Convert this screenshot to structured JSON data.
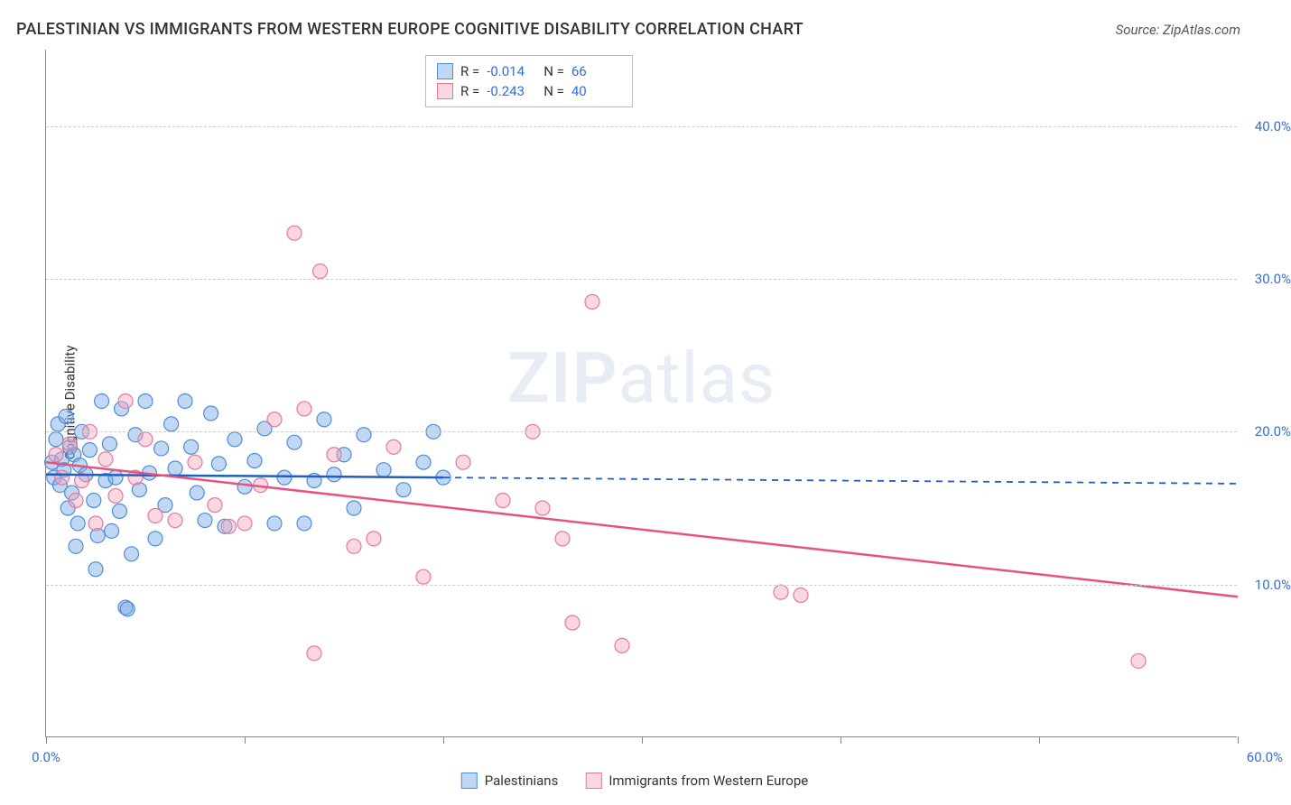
{
  "title": "PALESTINIAN VS IMMIGRANTS FROM WESTERN EUROPE COGNITIVE DISABILITY CORRELATION CHART",
  "source_label": "Source: ZipAtlas.com",
  "yaxis_label": "Cognitive Disability",
  "watermark": {
    "zip": "ZIP",
    "atlas": "atlas"
  },
  "chart": {
    "type": "scatter",
    "background_color": "#ffffff",
    "grid_color": "#cccccc",
    "xlim": [
      0,
      60
    ],
    "ylim": [
      0,
      45
    ],
    "xtick_positions": [
      0,
      10,
      20,
      30,
      40,
      50,
      60
    ],
    "xtick_labels_shown": {
      "0": "0.0%",
      "60": "60.0%"
    },
    "ytick_positions": [
      10,
      20,
      30,
      40
    ],
    "ytick_labels": [
      "10.0%",
      "20.0%",
      "30.0%",
      "40.0%"
    ],
    "ytick_color": "#356fd6",
    "xtick_color": "#356fd6",
    "marker_radius": 8,
    "marker_stroke_width": 1.2,
    "series": [
      {
        "name": "Palestinians",
        "fill": "rgba(117,169,230,0.45)",
        "stroke": "#4f8dd6",
        "r": -0.014,
        "n": 66,
        "regression": {
          "x1": 0,
          "y1": 17.2,
          "x2_solid": 20,
          "y2_solid": 17.0,
          "x2_dash": 60,
          "y2_dash": 16.6,
          "color": "#1f5fc4",
          "width": 2.5
        },
        "points": [
          [
            0.3,
            18.0
          ],
          [
            0.4,
            17.0
          ],
          [
            0.5,
            19.5
          ],
          [
            0.6,
            20.5
          ],
          [
            0.7,
            16.5
          ],
          [
            0.8,
            18.2
          ],
          [
            0.9,
            17.5
          ],
          [
            1.0,
            21.0
          ],
          [
            1.1,
            15.0
          ],
          [
            1.2,
            19.0
          ],
          [
            1.3,
            16.0
          ],
          [
            1.4,
            18.5
          ],
          [
            1.5,
            12.5
          ],
          [
            1.6,
            14.0
          ],
          [
            1.7,
            17.8
          ],
          [
            1.8,
            20.0
          ],
          [
            2.0,
            17.2
          ],
          [
            2.2,
            18.8
          ],
          [
            2.4,
            15.5
          ],
          [
            2.5,
            11.0
          ],
          [
            2.6,
            13.2
          ],
          [
            2.8,
            22.0
          ],
          [
            3.0,
            16.8
          ],
          [
            3.2,
            19.2
          ],
          [
            3.3,
            13.5
          ],
          [
            3.5,
            17.0
          ],
          [
            3.7,
            14.8
          ],
          [
            3.8,
            21.5
          ],
          [
            4.0,
            8.5
          ],
          [
            4.1,
            8.4
          ],
          [
            4.3,
            12.0
          ],
          [
            4.5,
            19.8
          ],
          [
            4.7,
            16.2
          ],
          [
            5.0,
            22.0
          ],
          [
            5.2,
            17.3
          ],
          [
            5.5,
            13.0
          ],
          [
            5.8,
            18.9
          ],
          [
            6.0,
            15.2
          ],
          [
            6.3,
            20.5
          ],
          [
            6.5,
            17.6
          ],
          [
            7.0,
            22.0
          ],
          [
            7.3,
            19.0
          ],
          [
            7.6,
            16.0
          ],
          [
            8.0,
            14.2
          ],
          [
            8.3,
            21.2
          ],
          [
            8.7,
            17.9
          ],
          [
            9.0,
            13.8
          ],
          [
            9.5,
            19.5
          ],
          [
            10.0,
            16.4
          ],
          [
            10.5,
            18.1
          ],
          [
            11.0,
            20.2
          ],
          [
            11.5,
            14.0
          ],
          [
            12.0,
            17.0
          ],
          [
            12.5,
            19.3
          ],
          [
            13.0,
            14.0
          ],
          [
            13.5,
            16.8
          ],
          [
            14.0,
            20.8
          ],
          [
            14.5,
            17.2
          ],
          [
            15.0,
            18.5
          ],
          [
            15.5,
            15.0
          ],
          [
            16.0,
            19.8
          ],
          [
            17.0,
            17.5
          ],
          [
            18.0,
            16.2
          ],
          [
            19.0,
            18.0
          ],
          [
            19.5,
            20.0
          ],
          [
            20.0,
            17.0
          ]
        ]
      },
      {
        "name": "Immigrants from Western Europe",
        "fill": "rgba(244,166,188,0.45)",
        "stroke": "#e6789d",
        "r": -0.243,
        "n": 40,
        "regression": {
          "x1": 0,
          "y1": 18.0,
          "x2_solid": 60,
          "y2_solid": 9.2,
          "color": "#e6537f",
          "width": 2.5
        },
        "points": [
          [
            0.5,
            18.5
          ],
          [
            0.8,
            17.0
          ],
          [
            1.2,
            19.2
          ],
          [
            1.5,
            15.5
          ],
          [
            1.8,
            16.8
          ],
          [
            2.2,
            20.0
          ],
          [
            2.5,
            14.0
          ],
          [
            3.0,
            18.2
          ],
          [
            3.5,
            15.8
          ],
          [
            4.0,
            22.0
          ],
          [
            4.5,
            17.0
          ],
          [
            5.0,
            19.5
          ],
          [
            5.5,
            14.5
          ],
          [
            6.5,
            14.2
          ],
          [
            7.5,
            18.0
          ],
          [
            8.5,
            15.2
          ],
          [
            9.2,
            13.8
          ],
          [
            10.0,
            14.0
          ],
          [
            10.8,
            16.5
          ],
          [
            11.5,
            20.8
          ],
          [
            12.5,
            33.0
          ],
          [
            13.0,
            21.5
          ],
          [
            13.8,
            30.5
          ],
          [
            14.5,
            18.5
          ],
          [
            15.5,
            12.5
          ],
          [
            16.5,
            13.0
          ],
          [
            17.5,
            19.0
          ],
          [
            19.0,
            10.5
          ],
          [
            21.0,
            18.0
          ],
          [
            23.0,
            15.5
          ],
          [
            24.5,
            20.0
          ],
          [
            25.0,
            15.0
          ],
          [
            26.0,
            13.0
          ],
          [
            26.5,
            7.5
          ],
          [
            27.5,
            28.5
          ],
          [
            29.0,
            6.0
          ],
          [
            37.0,
            9.5
          ],
          [
            38.0,
            9.3
          ],
          [
            55.0,
            5.0
          ],
          [
            13.5,
            5.5
          ]
        ]
      }
    ],
    "legend_box": {
      "border_color": "#bbbbbb",
      "value_color": "#356fd6"
    },
    "bottom_legend": [
      {
        "label": "Palestinians",
        "fill": "rgba(117,169,230,0.45)",
        "stroke": "#4f8dd6"
      },
      {
        "label": "Immigrants from Western Europe",
        "fill": "rgba(244,166,188,0.45)",
        "stroke": "#e6789d"
      }
    ]
  }
}
